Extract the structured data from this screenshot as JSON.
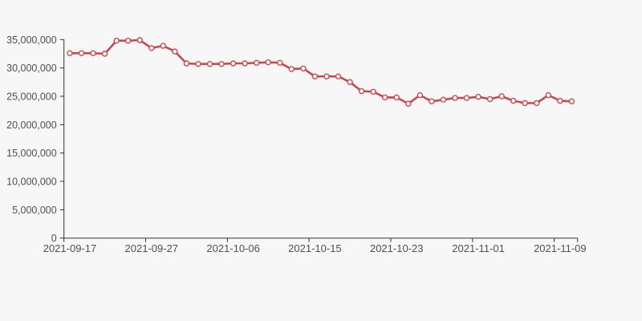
{
  "page": {
    "background_color": "#f7f7f7"
  },
  "chart_data": {
    "type": "line",
    "title": "",
    "xlabel": "",
    "ylabel": "",
    "legend": false,
    "grid": false,
    "x_tick_labels": [
      "2021-09-17",
      "2021-09-27",
      "2021-10-06",
      "2021-10-15",
      "2021-10-23",
      "2021-11-01",
      "2021-11-09"
    ],
    "x_tick_point_indices": [
      0,
      7,
      14,
      21,
      28,
      35,
      42
    ],
    "ylim": [
      0,
      35000000
    ],
    "y_ticks": [
      0,
      5000000,
      10000000,
      15000000,
      20000000,
      25000000,
      30000000,
      35000000
    ],
    "y_tick_labels": [
      "0",
      "5,000,000",
      "10,000,000",
      "15,000,000",
      "20,000,000",
      "25,000,000",
      "30,000,000",
      "35,000,000"
    ],
    "series": [
      {
        "name": "value",
        "marker": "circle",
        "values": [
          32600000,
          32600000,
          32600000,
          32500000,
          34800000,
          34800000,
          34900000,
          33500000,
          33900000,
          32900000,
          30800000,
          30700000,
          30700000,
          30700000,
          30800000,
          30800000,
          30900000,
          31000000,
          30900000,
          29800000,
          29900000,
          28500000,
          28500000,
          28500000,
          27500000,
          25900000,
          25800000,
          24800000,
          24800000,
          23700000,
          25200000,
          24100000,
          24400000,
          24700000,
          24700000,
          24900000,
          24500000,
          25000000,
          24200000,
          23800000,
          23800000,
          25200000,
          24200000,
          24100000
        ]
      }
    ],
    "colors": {
      "line": "#c8494e",
      "marker_fill": "#ffffff",
      "marker_stroke": "#c8494e",
      "axis": "#333333",
      "tick_label": "#4f4f4f",
      "background": "#f7f7f7"
    }
  }
}
